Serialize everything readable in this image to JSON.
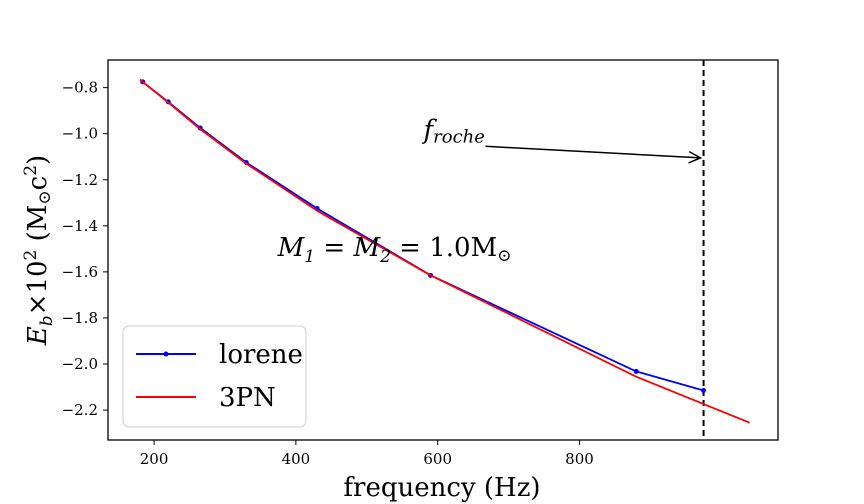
{
  "chart_data": {
    "type": "line",
    "xlabel": "frequency (Hz)",
    "ylabel": {
      "E": "E",
      "b": "b",
      "times": "×10",
      "exp": "2",
      "open": " (M",
      "odot": "⊙",
      "c": "c",
      "exp2": "2",
      "close": ")"
    },
    "xlim": [
      135,
      1080
    ],
    "ylim": [
      -2.33,
      -0.68
    ],
    "xticks": [
      200,
      400,
      600,
      800
    ],
    "yticks": [
      -0.8,
      -1.0,
      -1.2,
      -1.4,
      -1.6,
      -1.8,
      -2.0,
      -2.2
    ],
    "xtick_labels": [
      "200",
      "400",
      "600",
      "800"
    ],
    "ytick_labels": [
      "−0.8",
      "−1.0",
      "−1.2",
      "−1.4",
      "−1.6",
      "−1.8",
      "−2.0",
      "−2.2"
    ],
    "series": [
      {
        "name": "lorene",
        "color": "#0000ff",
        "marker": "dot",
        "x": [
          184,
          220,
          265,
          330,
          430,
          590,
          880,
          975
        ],
        "y": [
          -0.775,
          -0.862,
          -0.975,
          -1.125,
          -1.325,
          -1.615,
          -2.032,
          -2.115
        ]
      },
      {
        "name": "3PN",
        "color": "#ff0000",
        "marker": "none",
        "x": [
          180,
          220,
          265,
          330,
          430,
          590,
          880,
          1040
        ],
        "y": [
          -0.765,
          -0.865,
          -0.98,
          -1.13,
          -1.335,
          -1.615,
          -2.055,
          -2.255
        ]
      }
    ],
    "vline": {
      "x": 975,
      "color": "#000000",
      "style": "dashed"
    },
    "annotations": {
      "froche": {
        "f": "f",
        "sub": "roche",
        "text_x": 580,
        "text_y": -1.02,
        "arrow_x": 975,
        "arrow_y": -1.105
      },
      "masses": {
        "m1": "M",
        "s1": "1",
        "eq1": " = ",
        "m2": "M",
        "s2": "2",
        "eq2": " = ",
        "val": "1.0M",
        "odot": "⊙",
        "x": 600,
        "y": -1.5
      }
    },
    "legend": {
      "position": "bottom-left"
    },
    "grid": false
  }
}
